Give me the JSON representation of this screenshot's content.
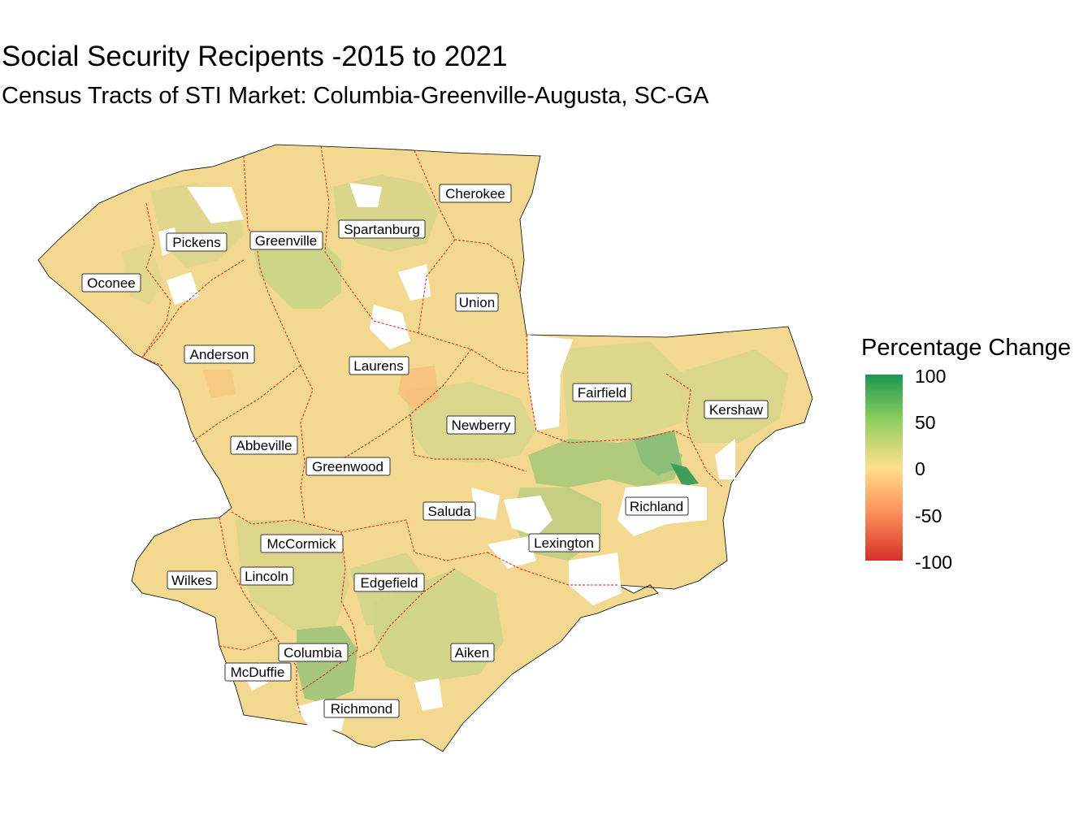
{
  "title": "Social Security Recipents -2015 to 2021",
  "subtitle": "Census Tracts of STI Market: Columbia-Greenville-Augusta, SC-GA",
  "legend": {
    "title": "Percentage Change",
    "ticks": [
      "100",
      "50",
      "0",
      "-50",
      "-100"
    ],
    "colors": [
      "#1a9850",
      "#91cf60",
      "#fee08b",
      "#fc8d59",
      "#d73027"
    ]
  },
  "colors": {
    "boundary": "#e41a1c",
    "outline": "#000000",
    "fill_base": "#f3d98f",
    "fill_greenish": "#c9d486",
    "fill_green": "#8cc07a",
    "fill_strong_green": "#3f9e5a",
    "fill_orange": "#f7c07c"
  },
  "counties": [
    {
      "name": "Cherokee"
    },
    {
      "name": "Pickens"
    },
    {
      "name": "Greenville"
    },
    {
      "name": "Spartanburg"
    },
    {
      "name": "Oconee"
    },
    {
      "name": "Union"
    },
    {
      "name": "Anderson"
    },
    {
      "name": "Laurens"
    },
    {
      "name": "Fairfield"
    },
    {
      "name": "Kershaw"
    },
    {
      "name": "Newberry"
    },
    {
      "name": "Abbeville"
    },
    {
      "name": "Greenwood"
    },
    {
      "name": "Saluda"
    },
    {
      "name": "Richland"
    },
    {
      "name": "McCormick"
    },
    {
      "name": "Lexington"
    },
    {
      "name": "Wilkes"
    },
    {
      "name": "Lincoln"
    },
    {
      "name": "Edgefield"
    },
    {
      "name": "Columbia"
    },
    {
      "name": "Aiken"
    },
    {
      "name": "McDuffie"
    },
    {
      "name": "Richmond"
    }
  ]
}
